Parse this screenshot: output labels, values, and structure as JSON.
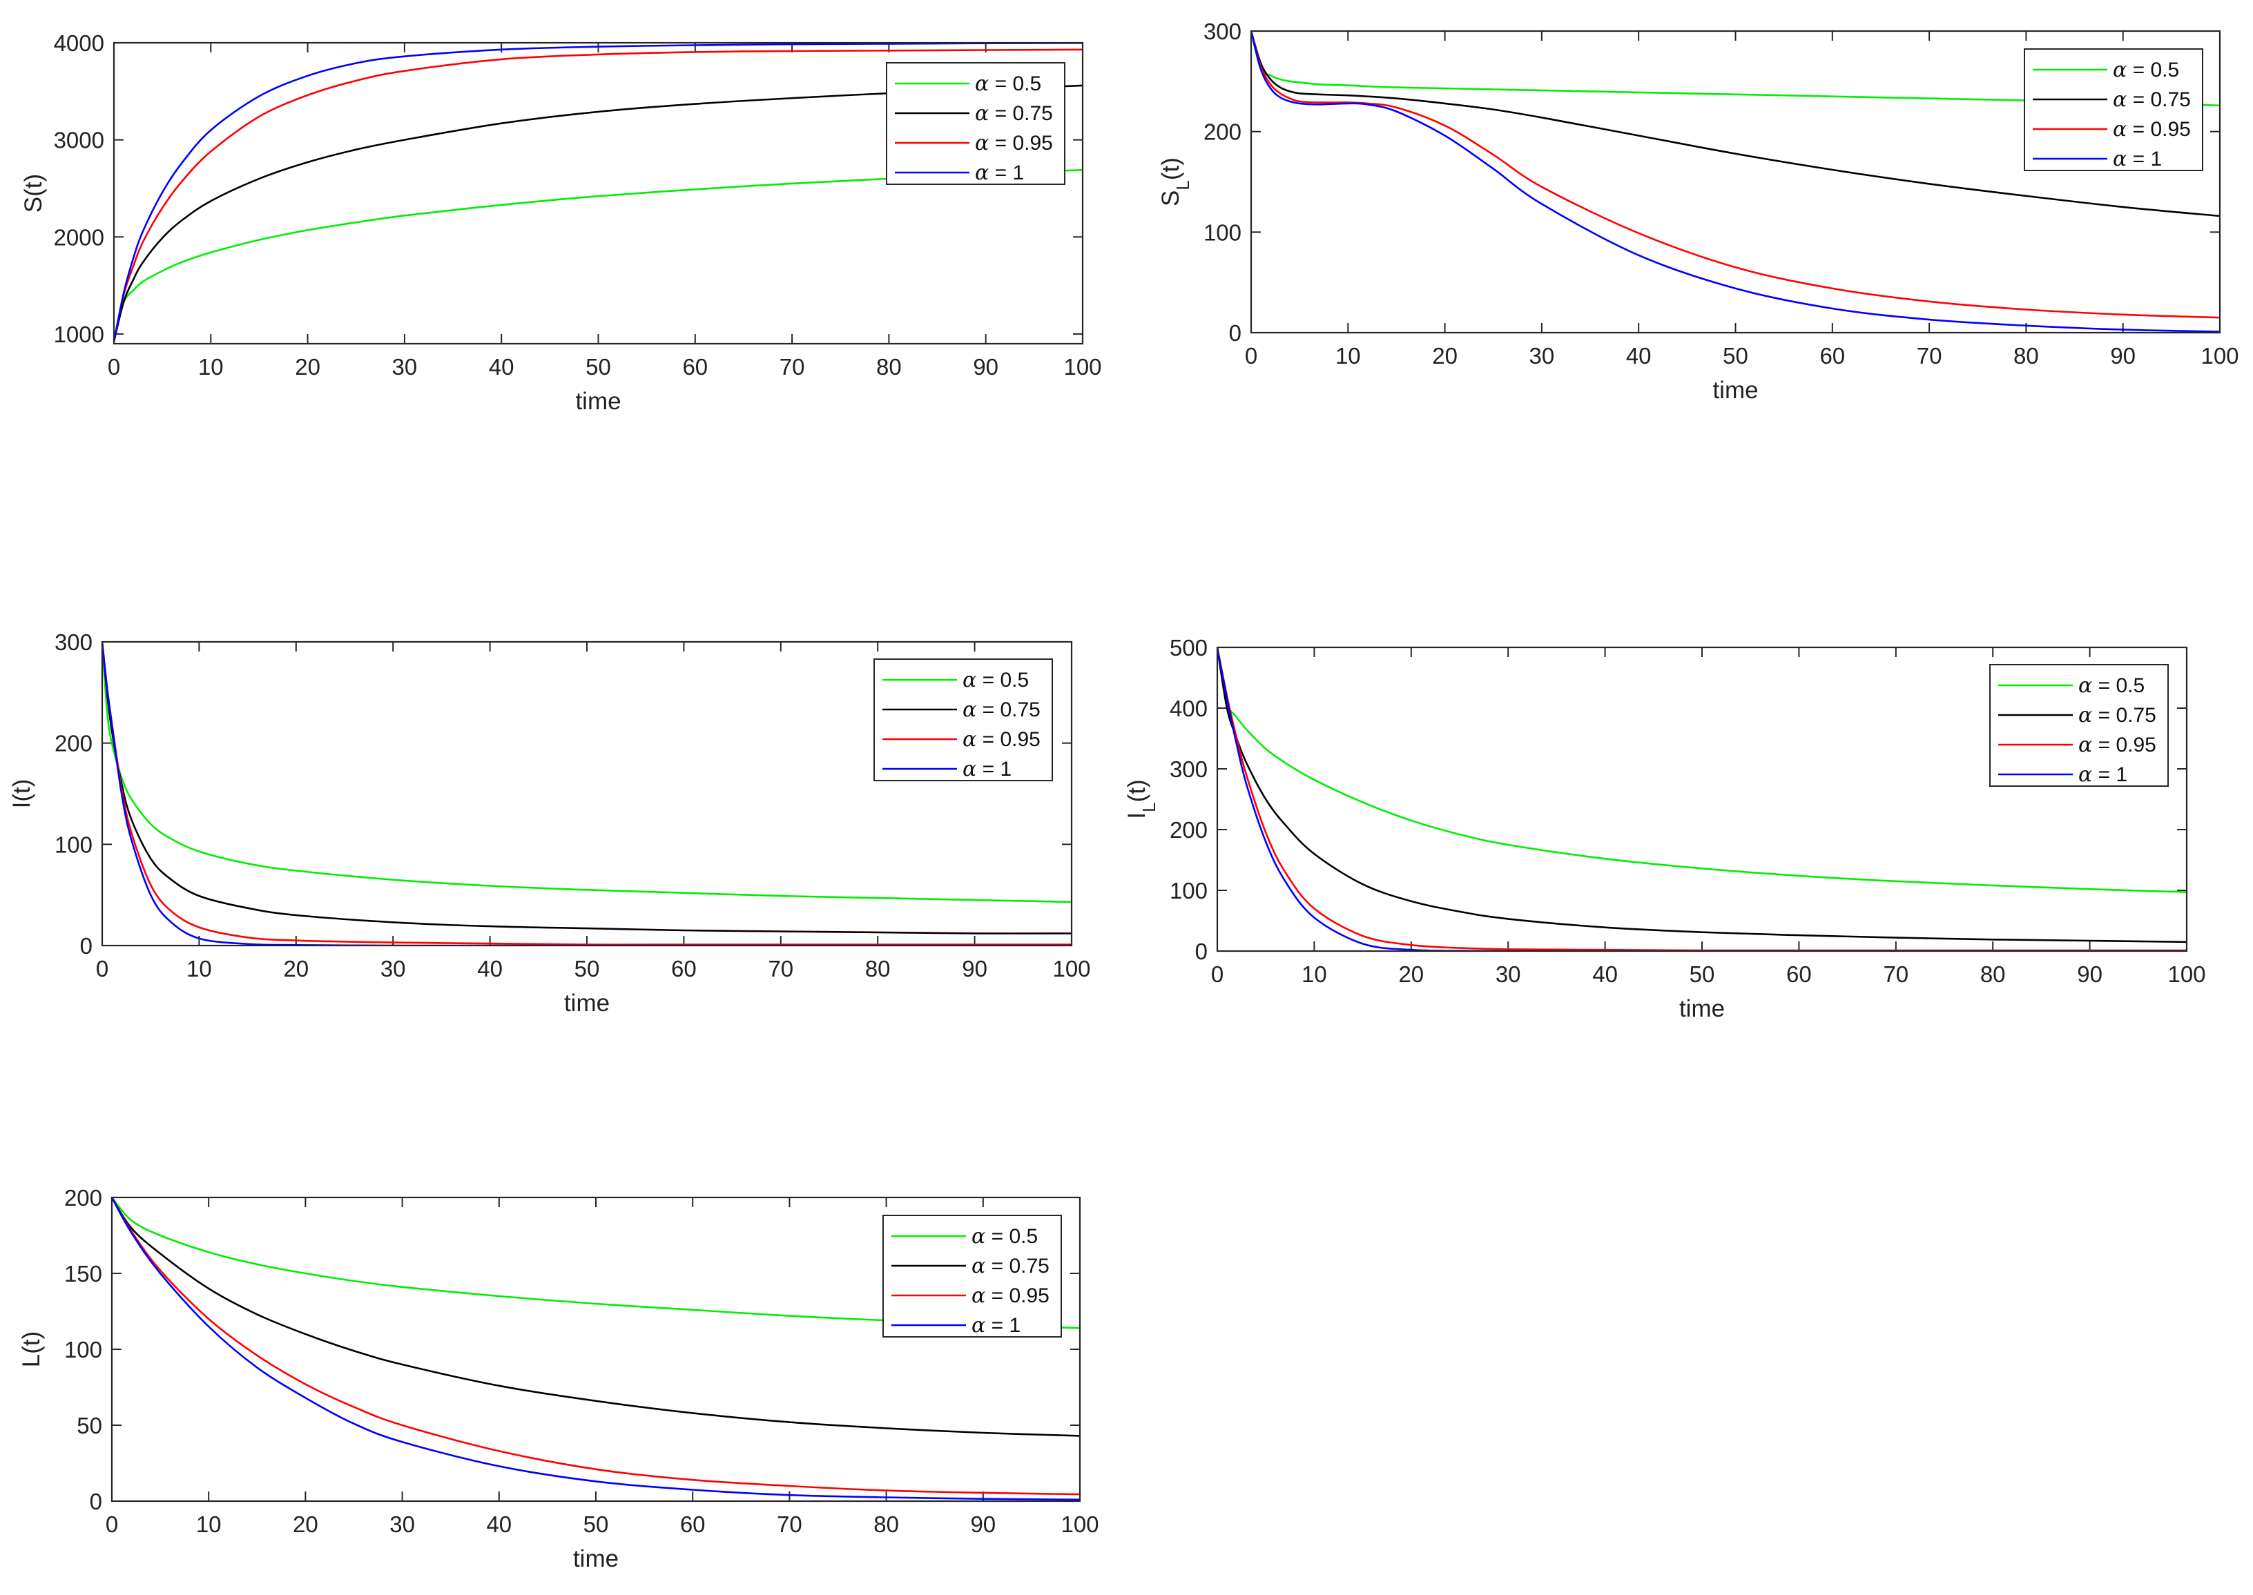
{
  "legend_symbol": "α",
  "series_styles": [
    {
      "key": "a05",
      "color": "#00ee00"
    },
    {
      "key": "a075",
      "color": "#000000"
    },
    {
      "key": "a095",
      "color": "#ff0000"
    },
    {
      "key": "a1",
      "color": "#0000ff"
    }
  ],
  "chart_data": [
    {
      "id": "S",
      "type": "line",
      "title": "",
      "xlabel": "time",
      "ylabel": "S(t)",
      "xlim": [
        0,
        100
      ],
      "ylim": [
        900,
        4000
      ],
      "xticks": [
        0,
        10,
        20,
        30,
        40,
        50,
        60,
        70,
        80,
        90,
        100
      ],
      "yticks": [
        1000,
        2000,
        3000,
        4000
      ],
      "legend_position": "top-right",
      "x": [
        0,
        1,
        2,
        3,
        5,
        7,
        10,
        15,
        20,
        25,
        30,
        40,
        50,
        60,
        70,
        80,
        90,
        100
      ],
      "series": [
        {
          "name": "α = 0.5",
          "values": [
            920,
            1320,
            1450,
            1540,
            1650,
            1740,
            1840,
            1970,
            2070,
            2150,
            2220,
            2330,
            2420,
            2490,
            2550,
            2600,
            2650,
            2690
          ]
        },
        {
          "name": "α = 0.75",
          "values": [
            920,
            1330,
            1560,
            1740,
            1990,
            2170,
            2370,
            2600,
            2770,
            2900,
            3000,
            3170,
            3290,
            3370,
            3430,
            3480,
            3520,
            3560
          ]
        },
        {
          "name": "α = 0.95",
          "values": [
            920,
            1400,
            1700,
            1950,
            2300,
            2570,
            2880,
            3240,
            3460,
            3610,
            3710,
            3830,
            3880,
            3905,
            3915,
            3920,
            3925,
            3930
          ]
        },
        {
          "name": "α = 1",
          "values": [
            920,
            1420,
            1780,
            2060,
            2460,
            2760,
            3100,
            3450,
            3660,
            3790,
            3860,
            3930,
            3960,
            3975,
            3985,
            3990,
            3995,
            3998
          ]
        }
      ]
    },
    {
      "id": "SL",
      "type": "line",
      "title": "",
      "xlabel": "time",
      "ylabel": "S",
      "ylabel_sub": "L",
      "ylabel_suffix": "(t)",
      "xlim": [
        0,
        100
      ],
      "ylim": [
        0,
        300
      ],
      "xticks": [
        0,
        10,
        20,
        30,
        40,
        50,
        60,
        70,
        80,
        90,
        100
      ],
      "yticks": [
        0,
        100,
        200,
        300
      ],
      "legend_position": "top-right",
      "x": [
        0,
        1,
        2,
        3,
        4,
        5,
        7,
        10,
        12,
        15,
        20,
        25,
        30,
        40,
        50,
        60,
        70,
        80,
        90,
        100
      ],
      "series": [
        {
          "name": "α = 0.5",
          "values": [
            300,
            262,
            256,
            252,
            250,
            249,
            247,
            246,
            245,
            244,
            243,
            242,
            241,
            239,
            237,
            235,
            233,
            231,
            229,
            226
          ]
        },
        {
          "name": "α = 0.75",
          "values": [
            300,
            268,
            252,
            244,
            240,
            238,
            237,
            236,
            235,
            233,
            228,
            222,
            214,
            196,
            178,
            162,
            148,
            136,
            125,
            116
          ]
        },
        {
          "name": "α = 0.95",
          "values": [
            300,
            265,
            247,
            238,
            233,
            230,
            229,
            229,
            228,
            224,
            206,
            177,
            145,
            99,
            65,
            44,
            31,
            23,
            18,
            15
          ]
        },
        {
          "name": "α = 1",
          "values": [
            300,
            262,
            243,
            234,
            230,
            228,
            227,
            228,
            227,
            220,
            196,
            163,
            128,
            77,
            44,
            24,
            13,
            7,
            3,
            1
          ]
        }
      ]
    },
    {
      "id": "I",
      "type": "line",
      "title": "",
      "xlabel": "time",
      "ylabel": "I(t)",
      "xlim": [
        0,
        100
      ],
      "ylim": [
        0,
        300
      ],
      "xticks": [
        0,
        10,
        20,
        30,
        40,
        50,
        60,
        70,
        80,
        90,
        100
      ],
      "yticks": [
        0,
        100,
        200,
        300
      ],
      "legend_position": "top-right",
      "x": [
        0,
        0.5,
        1,
        2,
        3,
        5,
        7,
        10,
        15,
        20,
        30,
        40,
        50,
        60,
        70,
        80,
        90,
        100
      ],
      "series": [
        {
          "name": "α = 0.5",
          "values": [
            300,
            232,
            200,
            166,
            145,
            120,
            106,
            93,
            81,
            74,
            65,
            59,
            55,
            52,
            49,
            47,
            45,
            43
          ]
        },
        {
          "name": "α = 0.75",
          "values": [
            300,
            250,
            212,
            160,
            125,
            86,
            66,
            49,
            37,
            30,
            23,
            19,
            17,
            15,
            14,
            13,
            12,
            12
          ]
        },
        {
          "name": "α = 0.95",
          "values": [
            300,
            255,
            220,
            155,
            112,
            60,
            35,
            18,
            8,
            5,
            3,
            2,
            1,
            1,
            1,
            1,
            1,
            1
          ]
        },
        {
          "name": "α = 1",
          "values": [
            300,
            255,
            218,
            150,
            105,
            50,
            24,
            7,
            1.5,
            0.5,
            0,
            0,
            0,
            0,
            0,
            0,
            0,
            0
          ]
        }
      ]
    },
    {
      "id": "IL",
      "type": "line",
      "title": "",
      "xlabel": "time",
      "ylabel": "I",
      "ylabel_sub": "L",
      "ylabel_suffix": "(t)",
      "xlim": [
        0,
        100
      ],
      "ylim": [
        0,
        500
      ],
      "xticks": [
        0,
        10,
        20,
        30,
        40,
        50,
        60,
        70,
        80,
        90,
        100
      ],
      "yticks": [
        0,
        100,
        200,
        300,
        400,
        500
      ],
      "legend_position": "top-right",
      "x": [
        0,
        1,
        2,
        3,
        5,
        7,
        10,
        15,
        20,
        25,
        30,
        40,
        50,
        60,
        70,
        80,
        90,
        100
      ],
      "series": [
        {
          "name": "α = 0.5",
          "values": [
            500,
            410,
            385,
            365,
            333,
            310,
            282,
            245,
            215,
            192,
            175,
            152,
            136,
            124,
            115,
            108,
            102,
            97
          ]
        },
        {
          "name": "α = 0.75",
          "values": [
            500,
            400,
            350,
            310,
            250,
            208,
            160,
            110,
            82,
            65,
            53,
            39,
            31,
            26,
            22,
            19,
            17,
            15
          ]
        },
        {
          "name": "α = 0.95",
          "values": [
            500,
            420,
            350,
            290,
            195,
            130,
            70,
            25,
            10,
            5,
            3,
            2,
            1,
            1,
            1,
            1,
            1,
            1
          ]
        },
        {
          "name": "α = 1",
          "values": [
            500,
            415,
            340,
            275,
            180,
            115,
            55,
            12,
            2,
            0.5,
            0,
            0,
            0,
            0,
            0,
            0,
            0,
            0
          ]
        }
      ]
    },
    {
      "id": "L",
      "type": "line",
      "title": "",
      "xlabel": "time",
      "ylabel": "L(t)",
      "xlim": [
        0,
        100
      ],
      "ylim": [
        0,
        200
      ],
      "xticks": [
        0,
        10,
        20,
        30,
        40,
        50,
        60,
        70,
        80,
        90,
        100
      ],
      "yticks": [
        0,
        50,
        100,
        150,
        200
      ],
      "legend_position": "top-right",
      "x": [
        0,
        2,
        5,
        10,
        15,
        20,
        25,
        30,
        40,
        50,
        60,
        70,
        80,
        90,
        100
      ],
      "series": [
        {
          "name": "α = 0.5",
          "values": [
            200,
            185,
            175,
            164,
            156,
            150,
            145,
            141,
            135,
            130,
            126,
            122,
            119,
            116,
            114
          ]
        },
        {
          "name": "α = 0.75",
          "values": [
            200,
            180,
            163,
            140,
            123,
            110,
            99,
            90,
            76,
            66,
            58,
            52,
            48,
            45,
            43
          ]
        },
        {
          "name": "α = 0.95",
          "values": [
            200,
            178,
            152,
            120,
            96,
            77,
            62,
            50,
            33,
            21,
            14,
            10,
            7,
            5.5,
            4.5
          ]
        },
        {
          "name": "α = 1",
          "values": [
            200,
            177,
            150,
            115,
            88,
            68,
            51,
            39,
            23,
            13,
            7.5,
            4,
            2.5,
            1.5,
            1
          ]
        }
      ]
    }
  ]
}
